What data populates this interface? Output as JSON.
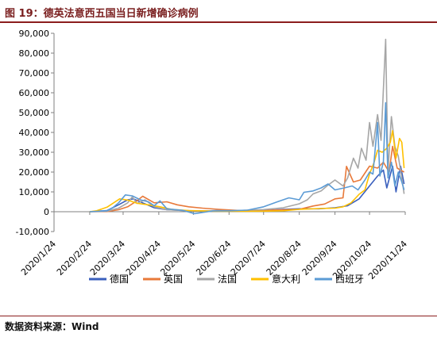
{
  "figure": {
    "title": "图 19：德英法意西五国当日新增确诊病例",
    "source": "数据资料来源：Wind"
  },
  "chart_data": {
    "type": "line",
    "title": "",
    "xlabel": "",
    "ylabel": "",
    "ylim": [
      -10000,
      90000
    ],
    "yticks": [
      -10000,
      0,
      10000,
      20000,
      30000,
      40000,
      50000,
      60000,
      70000,
      80000,
      90000
    ],
    "ytick_labels": [
      "-10,000",
      "0",
      "10,000",
      "20,000",
      "30,000",
      "40,000",
      "50,000",
      "60,000",
      "70,000",
      "80,000",
      "90,000"
    ],
    "xlim": [
      "2020-01-24",
      "2020-11-24"
    ],
    "xtick_labels": [
      "2020/1/24",
      "2020/2/24",
      "2020/3/24",
      "2020/4/24",
      "2020/5/24",
      "2020/6/24",
      "2020/7/24",
      "2020/8/24",
      "2020/9/24",
      "2020/10/24",
      "2020/11/24"
    ],
    "grid": false,
    "legend_position": "bottom",
    "series": [
      {
        "name": "德国",
        "color": "#3a5fbd",
        "points": [
          [
            "2020-02-24",
            0
          ],
          [
            "2020-03-10",
            600
          ],
          [
            "2020-03-20",
            3500
          ],
          [
            "2020-03-28",
            6000
          ],
          [
            "2020-04-02",
            6500
          ],
          [
            "2020-04-10",
            4500
          ],
          [
            "2020-04-20",
            2000
          ],
          [
            "2020-05-01",
            1000
          ],
          [
            "2020-05-15",
            600
          ],
          [
            "2020-06-01",
            400
          ],
          [
            "2020-06-20",
            700
          ],
          [
            "2020-07-10",
            400
          ],
          [
            "2020-07-24",
            600
          ],
          [
            "2020-08-10",
            1200
          ],
          [
            "2020-08-24",
            1500
          ],
          [
            "2020-09-10",
            1500
          ],
          [
            "2020-09-24",
            2000
          ],
          [
            "2020-10-05",
            3000
          ],
          [
            "2020-10-15",
            6500
          ],
          [
            "2020-10-24",
            13000
          ],
          [
            "2020-10-31",
            18000
          ],
          [
            "2020-11-05",
            21000
          ],
          [
            "2020-11-08",
            12000
          ],
          [
            "2020-11-13",
            23000
          ],
          [
            "2020-11-16",
            10000
          ],
          [
            "2020-11-20",
            23000
          ],
          [
            "2020-11-23",
            14000
          ]
        ]
      },
      {
        "name": "英国",
        "color": "#e8793a",
        "points": [
          [
            "2020-02-24",
            0
          ],
          [
            "2020-03-10",
            100
          ],
          [
            "2020-03-20",
            1000
          ],
          [
            "2020-03-28",
            2500
          ],
          [
            "2020-04-05",
            5500
          ],
          [
            "2020-04-10",
            7800
          ],
          [
            "2020-04-20",
            4500
          ],
          [
            "2020-05-01",
            5000
          ],
          [
            "2020-05-10",
            3500
          ],
          [
            "2020-05-20",
            2500
          ],
          [
            "2020-06-01",
            1800
          ],
          [
            "2020-06-15",
            1200
          ],
          [
            "2020-07-01",
            700
          ],
          [
            "2020-07-24",
            700
          ],
          [
            "2020-08-10",
            1000
          ],
          [
            "2020-08-24",
            1200
          ],
          [
            "2020-09-05",
            2900
          ],
          [
            "2020-09-15",
            3900
          ],
          [
            "2020-09-24",
            6500
          ],
          [
            "2020-10-01",
            7000
          ],
          [
            "2020-10-04",
            22900
          ],
          [
            "2020-10-10",
            15000
          ],
          [
            "2020-10-16",
            16000
          ],
          [
            "2020-10-24",
            23000
          ],
          [
            "2020-10-31",
            22000
          ],
          [
            "2020-11-05",
            25000
          ],
          [
            "2020-11-10",
            20000
          ],
          [
            "2020-11-13",
            33000
          ],
          [
            "2020-11-17",
            22000
          ],
          [
            "2020-11-23",
            20000
          ]
        ]
      },
      {
        "name": "法国",
        "color": "#a6a6a6",
        "points": [
          [
            "2020-02-24",
            0
          ],
          [
            "2020-03-10",
            300
          ],
          [
            "2020-03-20",
            1800
          ],
          [
            "2020-03-28",
            4500
          ],
          [
            "2020-04-01",
            7500
          ],
          [
            "2020-04-05",
            4200
          ],
          [
            "2020-04-12",
            6000
          ],
          [
            "2020-04-20",
            2500
          ],
          [
            "2020-05-01",
            1000
          ],
          [
            "2020-05-20",
            500
          ],
          [
            "2020-06-10",
            500
          ],
          [
            "2020-07-01",
            600
          ],
          [
            "2020-07-24",
            1100
          ],
          [
            "2020-08-10",
            2000
          ],
          [
            "2020-08-24",
            4000
          ],
          [
            "2020-08-31",
            6000
          ],
          [
            "2020-09-05",
            9000
          ],
          [
            "2020-09-12",
            10500
          ],
          [
            "2020-09-17",
            13000
          ],
          [
            "2020-09-24",
            16000
          ],
          [
            "2020-10-01",
            13000
          ],
          [
            "2020-10-05",
            17000
          ],
          [
            "2020-10-10",
            27000
          ],
          [
            "2020-10-14",
            22000
          ],
          [
            "2020-10-17",
            32000
          ],
          [
            "2020-10-21",
            26000
          ],
          [
            "2020-10-24",
            45000
          ],
          [
            "2020-10-27",
            33000
          ],
          [
            "2020-10-31",
            49000
          ],
          [
            "2020-11-03",
            36000
          ],
          [
            "2020-11-07",
            87000
          ],
          [
            "2020-11-09",
            20000
          ],
          [
            "2020-11-12",
            48000
          ],
          [
            "2020-11-15",
            33000
          ],
          [
            "2020-11-18",
            28000
          ],
          [
            "2020-11-21",
            17000
          ],
          [
            "2020-11-23",
            9000
          ]
        ]
      },
      {
        "name": "意大利",
        "color": "#ffc000",
        "points": [
          [
            "2020-02-24",
            0
          ],
          [
            "2020-03-01",
            500
          ],
          [
            "2020-03-10",
            2300
          ],
          [
            "2020-03-21",
            6500
          ],
          [
            "2020-03-28",
            5900
          ],
          [
            "2020-04-05",
            4300
          ],
          [
            "2020-04-15",
            3500
          ],
          [
            "2020-04-25",
            2500
          ],
          [
            "2020-05-05",
            1200
          ],
          [
            "2020-05-20",
            600
          ],
          [
            "2020-06-10",
            300
          ],
          [
            "2020-07-10",
            200
          ],
          [
            "2020-07-24",
            300
          ],
          [
            "2020-08-10",
            500
          ],
          [
            "2020-08-24",
            1200
          ],
          [
            "2020-09-10",
            1600
          ],
          [
            "2020-09-24",
            1800
          ],
          [
            "2020-10-01",
            2500
          ],
          [
            "2020-10-08",
            4500
          ],
          [
            "2020-10-15",
            8800
          ],
          [
            "2020-10-20",
            11000
          ],
          [
            "2020-10-24",
            19000
          ],
          [
            "2020-10-28",
            25000
          ],
          [
            "2020-10-31",
            31000
          ],
          [
            "2020-11-04",
            30000
          ],
          [
            "2020-11-08",
            32000
          ],
          [
            "2020-11-11",
            35000
          ],
          [
            "2020-11-13",
            40900
          ],
          [
            "2020-11-16",
            27000
          ],
          [
            "2020-11-19",
            37000
          ],
          [
            "2020-11-21",
            35000
          ],
          [
            "2020-11-23",
            22000
          ]
        ]
      },
      {
        "name": "西班牙",
        "color": "#5b9bd5",
        "points": [
          [
            "2020-02-24",
            0
          ],
          [
            "2020-03-10",
            500
          ],
          [
            "2020-03-15",
            2000
          ],
          [
            "2020-03-20",
            4500
          ],
          [
            "2020-03-26",
            8500
          ],
          [
            "2020-04-01",
            8000
          ],
          [
            "2020-04-08",
            6000
          ],
          [
            "2020-04-15",
            5000
          ],
          [
            "2020-04-20",
            3000
          ],
          [
            "2020-04-25",
            5500
          ],
          [
            "2020-05-01",
            1500
          ],
          [
            "2020-05-15",
            700
          ],
          [
            "2020-05-25",
            -1000
          ],
          [
            "2020-06-10",
            400
          ],
          [
            "2020-06-24",
            500
          ],
          [
            "2020-07-10",
            800
          ],
          [
            "2020-07-24",
            2500
          ],
          [
            "2020-08-05",
            5000
          ],
          [
            "2020-08-15",
            7000
          ],
          [
            "2020-08-24",
            6000
          ],
          [
            "2020-08-28",
            9800
          ],
          [
            "2020-09-05",
            10500
          ],
          [
            "2020-09-12",
            12000
          ],
          [
            "2020-09-18",
            14000
          ],
          [
            "2020-09-24",
            11000
          ],
          [
            "2020-10-02",
            12000
          ],
          [
            "2020-10-09",
            13000
          ],
          [
            "2020-10-14",
            11000
          ],
          [
            "2020-10-20",
            16000
          ],
          [
            "2020-10-24",
            20000
          ],
          [
            "2020-10-27",
            19000
          ],
          [
            "2020-10-31",
            45000
          ],
          [
            "2020-11-02",
            18000
          ],
          [
            "2020-11-05",
            25000
          ],
          [
            "2020-11-07",
            55000
          ],
          [
            "2020-11-09",
            17000
          ],
          [
            "2020-11-12",
            25000
          ],
          [
            "2020-11-15",
            13000
          ],
          [
            "2020-11-18",
            20000
          ],
          [
            "2020-11-21",
            15000
          ],
          [
            "2020-11-23",
            11000
          ]
        ]
      }
    ]
  }
}
